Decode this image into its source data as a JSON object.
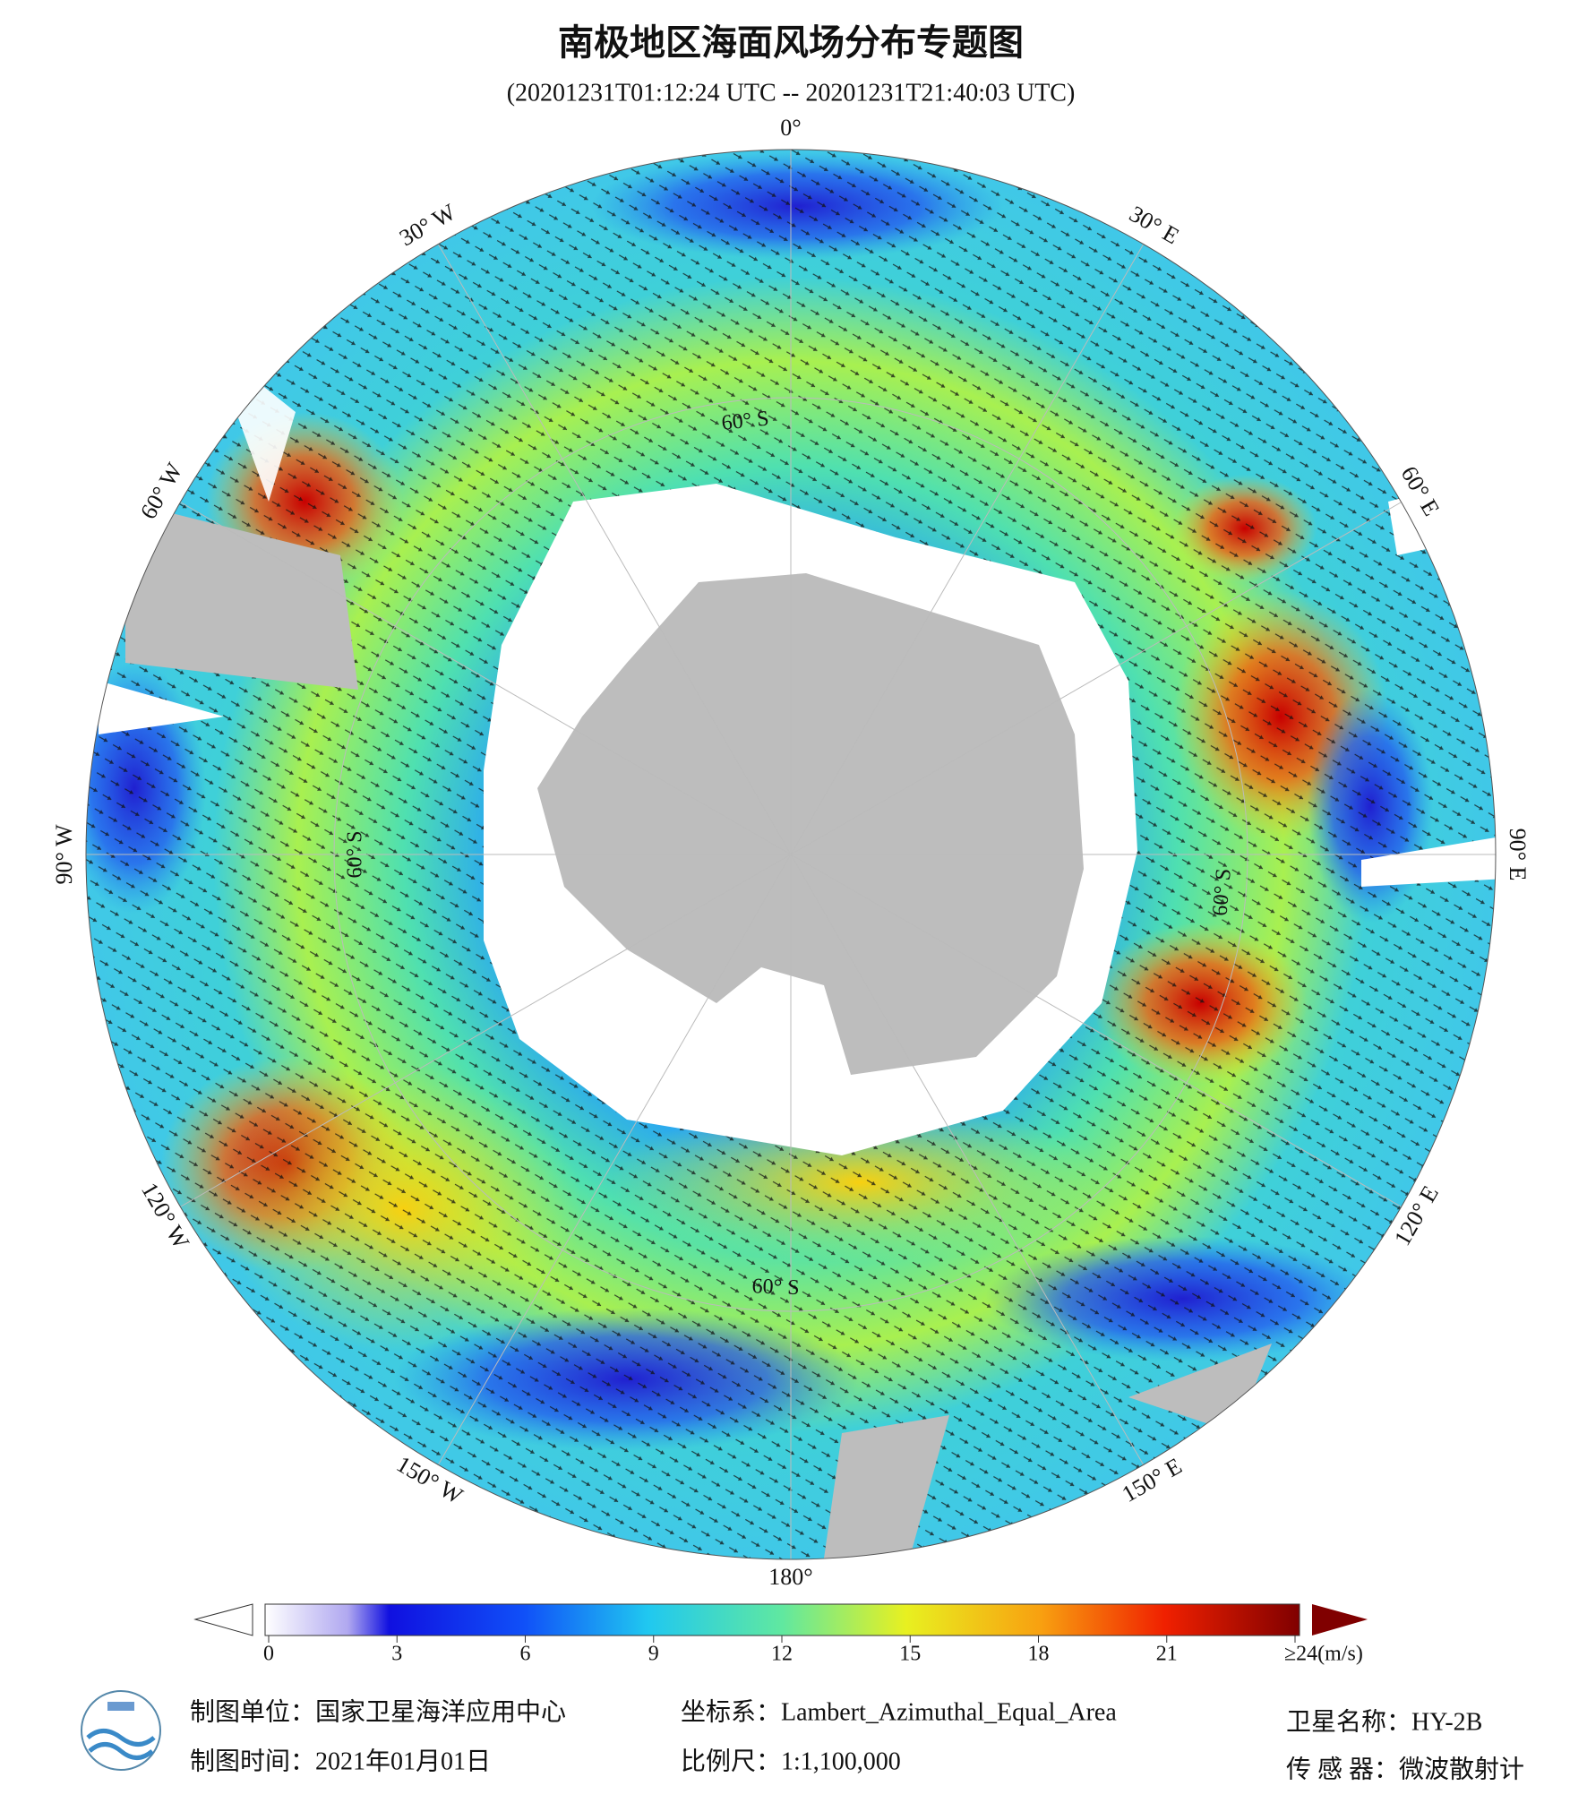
{
  "header": {
    "title": "南极地区海面风场分布专题图",
    "subtitle": "(20201231T01:12:24 UTC -- 20201231T21:40:03 UTC)"
  },
  "map": {
    "longitude_labels": [
      "0°",
      "30° E",
      "60° E",
      "90° E",
      "120° E",
      "150° E",
      "180°",
      "150° W",
      "120° W",
      "90° W",
      "60° W",
      "30° W"
    ],
    "latitude_labels": [
      "60° S",
      "60° S",
      "60° S",
      "60° S"
    ]
  },
  "colorbar": {
    "ticks": [
      0,
      3,
      6,
      9,
      12,
      15,
      18,
      21,
      {
        "value": 24,
        "label": "≥24(m/s)"
      }
    ]
  },
  "footer": {
    "unit": "制图单位：国家卫星海洋应用中心",
    "date": "制图时间：2021年01月01日",
    "projection": "坐标系：Lambert_Azimuthal_Equal_Area",
    "scale": "比例尺：1:1,100,000",
    "satellite": "卫星名称：HY-2B",
    "sensor": "传 感 器：微波散射计"
  }
}
